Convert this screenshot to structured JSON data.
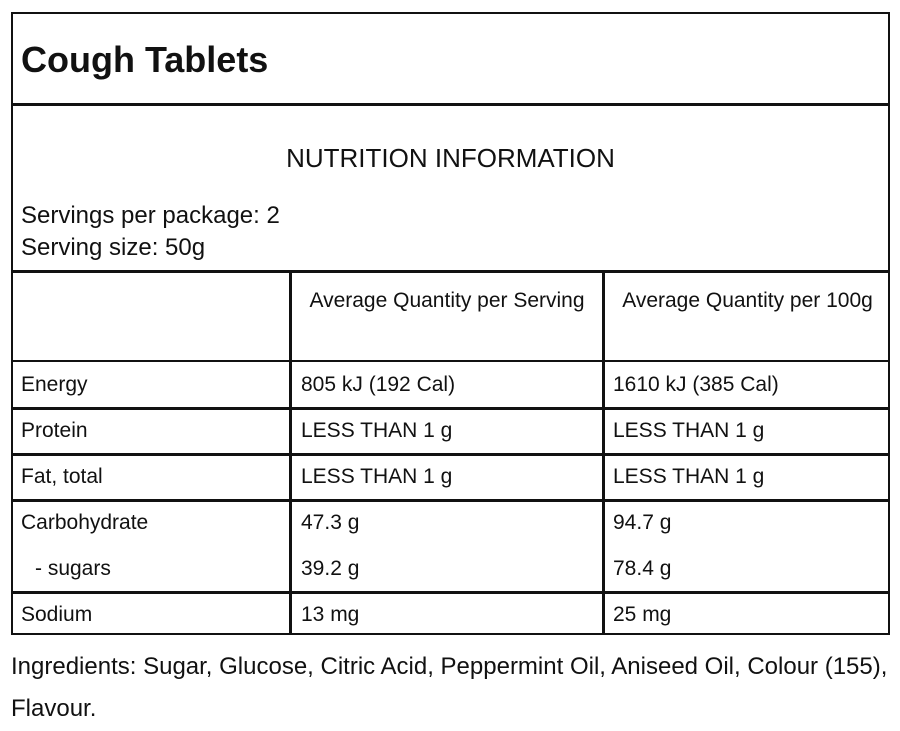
{
  "header": {
    "title": "Cough Tablets"
  },
  "panel": {
    "heading": "NUTRITION INFORMATION",
    "servings_per_package": "Servings per package: 2",
    "serving_size": "Serving size: 50g"
  },
  "table": {
    "columns": [
      "Average Quantity per Serving",
      "Average Quantity per 100g"
    ],
    "rows": [
      [
        [
          "Energy",
          "805 kJ (192 Cal)",
          "1610 kJ (385 Cal)"
        ]
      ],
      [
        [
          "Protein",
          "LESS THAN 1 g",
          "LESS THAN 1 g"
        ]
      ],
      [
        [
          "Fat, total",
          "LESS THAN 1 g",
          "LESS THAN 1 g"
        ]
      ],
      [
        [
          "Carbohydrate",
          "47.3 g",
          "94.7 g"
        ],
        [
          "- sugars",
          "39.2 g",
          "78.4 g"
        ]
      ],
      [
        [
          "Sodium",
          "13 mg",
          "25 mg"
        ]
      ]
    ]
  },
  "footer": {
    "ingredients": "Ingredients: Sugar, Glucose, Citric Acid, Peppermint Oil, Aniseed Oil, Colour (155), Flavour."
  }
}
